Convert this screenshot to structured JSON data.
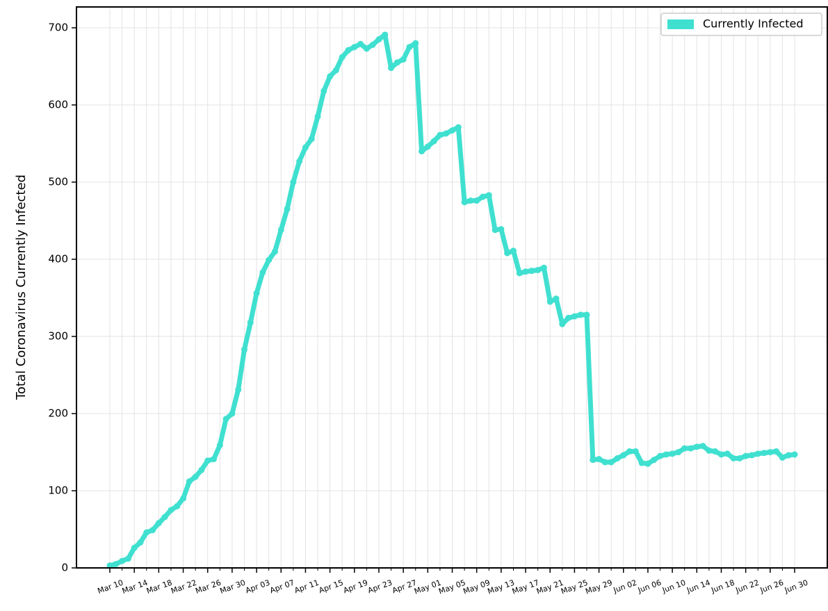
{
  "chart_data": {
    "type": "line",
    "ylabel": "Total Coronavirus Currently Infected",
    "categories": [
      "Mar 10",
      null,
      null,
      null,
      "Mar 14",
      null,
      null,
      null,
      "Mar 18",
      null,
      null,
      null,
      "Mar 22",
      null,
      null,
      null,
      "Mar 26",
      null,
      null,
      null,
      "Mar 30",
      null,
      null,
      null,
      "Apr 03",
      null,
      null,
      null,
      "Apr 07",
      null,
      null,
      null,
      "Apr 11",
      null,
      null,
      null,
      "Apr 15",
      null,
      null,
      null,
      "Apr 19",
      null,
      null,
      null,
      "Apr 23",
      null,
      null,
      null,
      "Apr 27",
      null,
      null,
      null,
      "May 01",
      null,
      null,
      null,
      "May 05",
      null,
      null,
      null,
      "May 09",
      null,
      null,
      null,
      "May 13",
      null,
      null,
      null,
      "May 17",
      null,
      null,
      null,
      "May 21",
      null,
      null,
      null,
      "May 25",
      null,
      null,
      null,
      "May 29",
      null,
      null,
      null,
      "Jun 02",
      null,
      null,
      null,
      "Jun 06",
      null,
      null,
      null,
      "Jun 10",
      null,
      null,
      null,
      "Jun 14",
      null,
      null,
      null,
      "Jun 18",
      null,
      null,
      null,
      "Jun 22",
      null,
      null,
      null,
      "Jun 26",
      null,
      null,
      null,
      "Jun 30"
    ],
    "series": [
      {
        "name": "Currently Infected",
        "color": "#40e0d0",
        "values": [
          3,
          5,
          9,
          12,
          26,
          33,
          46,
          49,
          58,
          66,
          75,
          80,
          90,
          112,
          118,
          127,
          139,
          141,
          159,
          193,
          200,
          231,
          283,
          318,
          356,
          383,
          399,
          410,
          438,
          465,
          500,
          527,
          545,
          556,
          585,
          618,
          637,
          645,
          662,
          671,
          675,
          679,
          673,
          678,
          685,
          691,
          648,
          655,
          659,
          675,
          680,
          540,
          546,
          553,
          561,
          563,
          567,
          571,
          474,
          476,
          476,
          481,
          483,
          438,
          439,
          408,
          411,
          382,
          384,
          385,
          386,
          389,
          345,
          349,
          316,
          324,
          326,
          328,
          328,
          140,
          141,
          137,
          137,
          142,
          146,
          151,
          151,
          136,
          135,
          140,
          145,
          147,
          148,
          150,
          155,
          155,
          157,
          158,
          152,
          151,
          147,
          148,
          142,
          142,
          145,
          146,
          148,
          149,
          150,
          151,
          143,
          146,
          147
        ]
      }
    ],
    "ylim": [
      0,
      727
    ],
    "yticks": [
      0,
      100,
      200,
      300,
      400,
      500,
      600,
      700
    ],
    "grid": true,
    "legend": "upper right"
  }
}
